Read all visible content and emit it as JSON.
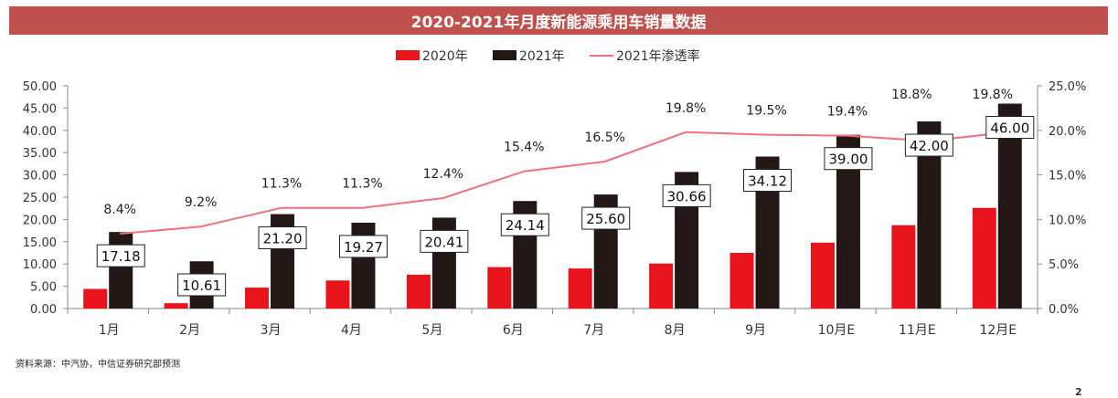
{
  "chart_data": {
    "type": "bar",
    "title": "2020-2021年月度新能源乘用车销量数据",
    "categories": [
      "1月",
      "2月",
      "3月",
      "4月",
      "5月",
      "6月",
      "7月",
      "8月",
      "9月",
      "10月E",
      "11月E",
      "12月E"
    ],
    "series": [
      {
        "name": "2020年",
        "type": "bar",
        "axis": "left",
        "color": "#e8141c",
        "values": [
          4.4,
          1.2,
          4.7,
          6.3,
          7.6,
          9.3,
          9.0,
          10.1,
          12.5,
          14.8,
          18.7,
          22.6
        ]
      },
      {
        "name": "2021年",
        "type": "bar",
        "axis": "left",
        "color": "#231815",
        "values": [
          17.18,
          10.61,
          21.2,
          19.27,
          20.41,
          24.14,
          25.6,
          30.66,
          34.12,
          39.0,
          42.0,
          46.0
        ],
        "labels": [
          "17.18",
          "10.61",
          "21.20",
          "19.27",
          "20.41",
          "24.14",
          "25.60",
          "30.66",
          "34.12",
          "39.00",
          "42.00",
          "46.00"
        ]
      },
      {
        "name": "2021年渗透率",
        "type": "line",
        "axis": "right",
        "color": "#f2707d",
        "values": [
          8.4,
          9.2,
          11.3,
          11.3,
          12.4,
          15.4,
          16.5,
          19.8,
          19.5,
          19.4,
          18.8,
          19.8
        ],
        "labels": [
          "8.4%",
          "9.2%",
          "11.3%",
          "11.3%",
          "12.4%",
          "15.4%",
          "16.5%",
          "19.8%",
          "19.5%",
          "19.4%",
          "18.8%",
          "19.8%"
        ]
      }
    ],
    "y_left": {
      "min": 0,
      "max": 50,
      "step": 5,
      "ticks": [
        "0.00",
        "5.00",
        "10.00",
        "15.00",
        "20.00",
        "25.00",
        "30.00",
        "35.00",
        "40.00",
        "45.00",
        "50.00"
      ]
    },
    "y_right": {
      "min": 0,
      "max": 25,
      "step": 5,
      "ticks": [
        "0.0%",
        "5.0%",
        "10.0%",
        "15.0%",
        "20.0%",
        "25.0%"
      ]
    },
    "grid": false,
    "legend_position": "top-center"
  },
  "source_note": "资料来源：中汽协，中信证券研究部预测",
  "page_number": "2"
}
